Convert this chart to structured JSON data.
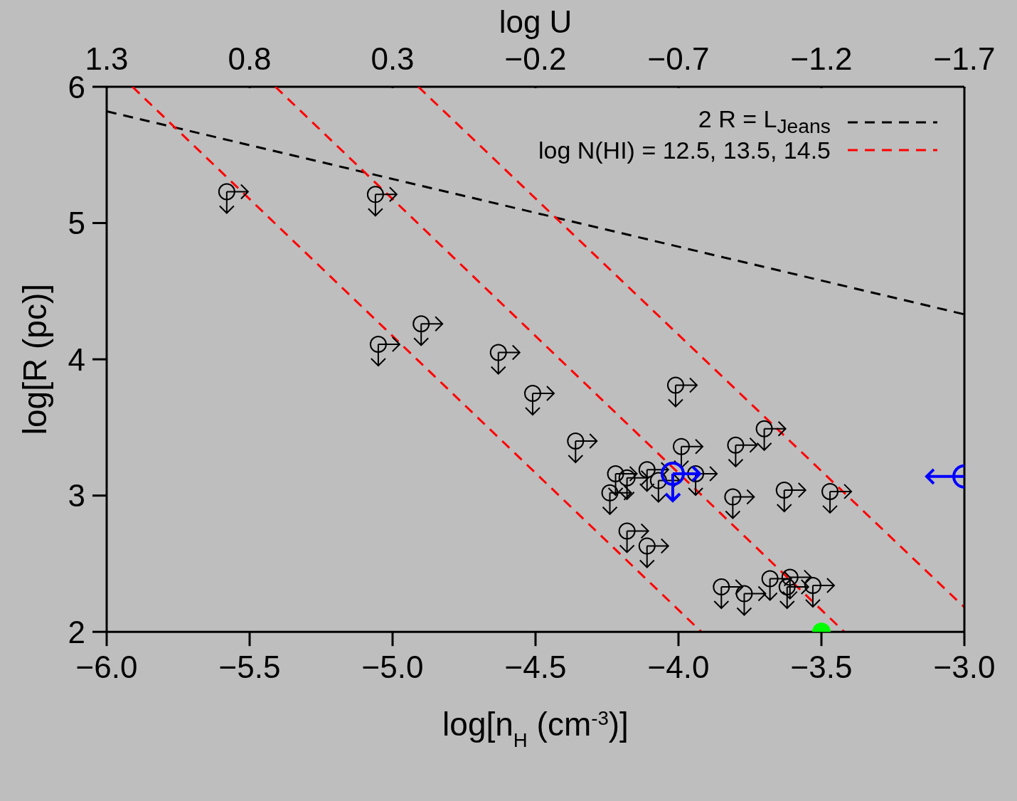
{
  "chart_data": {
    "type": "scatter",
    "xlabel": "log[n$_{H}$ (cm$^{-3}$)]",
    "ylabel": "log[R (pc)]",
    "x2label": "log U",
    "xlim": [
      -6,
      -3
    ],
    "xticks": [
      {
        "value": -6,
        "label": "−6.0"
      },
      {
        "value": -5.5,
        "label": "−5.5"
      },
      {
        "value": -5,
        "label": "−5.0"
      },
      {
        "value": -4.5,
        "label": "−4.5"
      },
      {
        "value": -4,
        "label": "−4.0"
      },
      {
        "value": -3.5,
        "label": "−3.5"
      },
      {
        "value": -3,
        "label": "−3.0"
      }
    ],
    "x2lim": [
      1.3,
      -1.7
    ],
    "x2ticks": [
      1.3,
      0.8,
      0.3,
      {
        "value": -0.2,
        "label": "−0.2"
      },
      {
        "value": -0.7,
        "label": "−0.7"
      },
      {
        "value": -1.2,
        "label": "−1.2"
      },
      {
        "value": -1.7,
        "label": "−1.7"
      }
    ],
    "ylim": [
      2,
      6
    ],
    "yticks": [
      2,
      3,
      4,
      5,
      6
    ],
    "grid": false,
    "legend": "top right",
    "series": [
      {
        "color": "#000000",
        "marker": "circle",
        "x": [
          -5.58,
          -5.06,
          -5.05,
          -4.9,
          -4.63,
          -4.51,
          -4.36,
          -4.01,
          -3.99,
          -3.8,
          -3.7,
          -4.22,
          -4.18,
          -4.11,
          -4.07,
          -4.24,
          -3.94,
          -3.81,
          -3.63,
          -3.47,
          -4.18,
          -4.11,
          -3.85,
          -3.77,
          -3.68,
          -3.61,
          -3.62,
          -3.53
        ],
        "values": [
          5.23,
          5.21,
          4.11,
          4.26,
          4.05,
          3.75,
          3.4,
          3.81,
          3.36,
          3.37,
          3.49,
          3.16,
          3.13,
          3.19,
          3.11,
          3.02,
          3.16,
          2.99,
          3.04,
          3.03,
          2.74,
          2.63,
          2.33,
          2.28,
          2.39,
          2.4,
          2.33,
          2.34
        ]
      },
      {
        "color": "#0000ff",
        "marker": "circle",
        "x": [
          -4.02,
          -3.0
        ],
        "values": [
          3.16,
          3.14
        ]
      },
      {
        "color": "#00ff00",
        "marker": "circle",
        "x": [
          -3.5
        ],
        "values": [
          2.0
        ]
      },
      {
        "type": "line",
        "name": "2 R = L$_{Jeans}$",
        "color": "#000000",
        "line_style": "dashed",
        "marker": "none",
        "x": [
          -6,
          -3
        ],
        "values": [
          5.82,
          4.33
        ]
      },
      {
        "type": "line",
        "name": "log N(HI) = 12.5, 13.5, 14.5",
        "color": "#ff0000",
        "line_style": "dashed",
        "marker": "none",
        "x": [
          -5.91,
          -3.92
        ],
        "values": [
          6,
          2
        ]
      },
      {
        "type": "line",
        "color": "#ff0000",
        "line_style": "dashed",
        "marker": "none",
        "x": [
          -5.41,
          -3.42
        ],
        "values": [
          6,
          2
        ]
      },
      {
        "type": "line",
        "color": "#ff0000",
        "line_style": "dashed",
        "marker": "none",
        "x": [
          -4.91,
          -3.0
        ],
        "values": [
          6,
          2.18
        ]
      }
    ]
  }
}
